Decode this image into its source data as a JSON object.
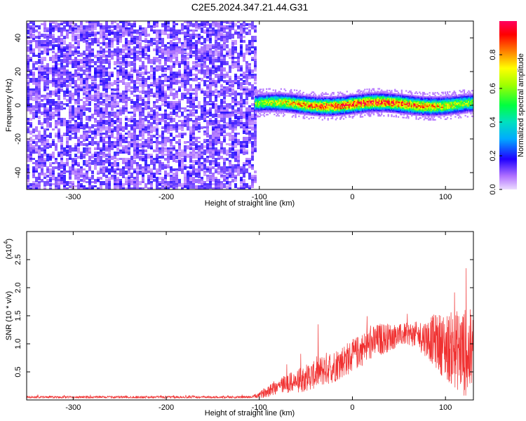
{
  "chart_data": [
    {
      "type": "heatmap",
      "title": "C2E5.2024.347.21.44.G31",
      "xlabel": "Height of straight line (km)",
      "ylabel": "Frequency (Hz)",
      "xlim": [
        -350,
        130
      ],
      "ylim": [
        -50,
        50
      ],
      "xticks": [
        -300,
        -200,
        -100,
        0,
        100
      ],
      "yticks": [
        -40,
        -20,
        0,
        20,
        40
      ],
      "colorbar": {
        "label": "Normalized spectral amplitude",
        "range": [
          0,
          1
        ],
        "ticks": [
          0.0,
          0.2,
          0.4,
          0.6,
          0.8
        ],
        "tick_labels": [
          "0.0",
          "0.2",
          "0.4",
          "0.6",
          "0.8"
        ],
        "colormap": "rainbow",
        "low_color": "#e8d8ff",
        "high_color": "#ff0050"
      },
      "regions": [
        {
          "x_range": [
            -350,
            -105
          ],
          "freq_range": [
            -50,
            50
          ],
          "amplitude": 0.12,
          "description_color": "#8a2be2"
        },
        {
          "x_range": [
            -105,
            130
          ],
          "freq_center": 1,
          "freq_halfwidth": 4,
          "amplitude_range": [
            0.35,
            0.95
          ]
        }
      ]
    },
    {
      "type": "line",
      "ylabel": "SNR (10 * v/v)",
      "xlabel": "Height of straight line (km)",
      "y_multiplier_label": "(x10",
      "y_multiplier_exponent": "4",
      "xlim": [
        -350,
        130
      ],
      "ylim": [
        0,
        3.0
      ],
      "xticks": [
        -300,
        -200,
        -100,
        0,
        100
      ],
      "yticks": [
        0.5,
        1.0,
        1.5,
        2.0,
        2.5
      ],
      "ytick_labels": [
        "0.5",
        "1.0",
        "1.5",
        "2.0",
        "2.5"
      ],
      "series": [
        {
          "color": "#f03030",
          "x": [
            -350,
            -300,
            -200,
            -110,
            -100,
            -90,
            -80,
            -70,
            -60,
            -50,
            -40,
            -30,
            -20,
            -10,
            0,
            10,
            20,
            30,
            40,
            50,
            60,
            70,
            80,
            90,
            100,
            110,
            120,
            130
          ],
          "mean": [
            0.05,
            0.05,
            0.05,
            0.05,
            0.08,
            0.18,
            0.25,
            0.3,
            0.32,
            0.4,
            0.45,
            0.55,
            0.6,
            0.7,
            0.78,
            0.9,
            1.0,
            1.08,
            1.12,
            1.15,
            1.18,
            1.15,
            1.1,
            1.05,
            0.95,
            0.9,
            0.85,
            0.8
          ],
          "noise": [
            0.02,
            0.02,
            0.02,
            0.02,
            0.05,
            0.12,
            0.15,
            0.18,
            0.2,
            0.25,
            0.25,
            0.3,
            0.3,
            0.3,
            0.3,
            0.3,
            0.3,
            0.3,
            0.25,
            0.2,
            0.2,
            0.25,
            0.35,
            0.5,
            0.6,
            0.7,
            0.8,
            0.8
          ]
        }
      ]
    }
  ]
}
